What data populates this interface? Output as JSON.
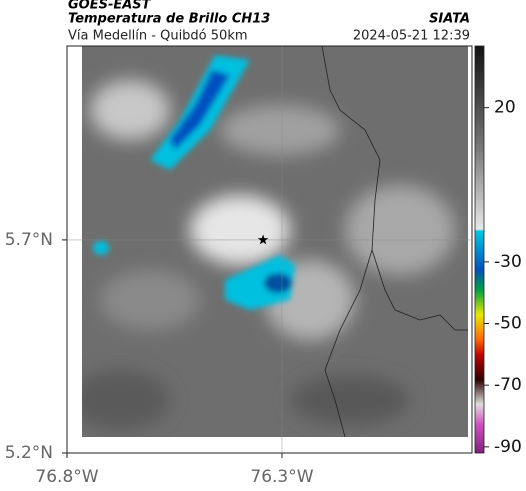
{
  "header": {
    "source": "GOES-EAST",
    "title": "Temperatura de Brillo CH13",
    "brand": "SIATA",
    "route": "Vía Medellín - Quibdó 50km",
    "timestamp": "2024-05-21 12:39"
  },
  "map": {
    "xlim": [
      -76.8,
      -75.858
    ],
    "ylim": [
      5.2,
      6.155
    ],
    "xticks": [
      {
        "value": -76.8,
        "label": "76.8°W"
      },
      {
        "value": -76.3,
        "label": "76.3°W"
      }
    ],
    "yticks": [
      {
        "value": 5.2,
        "label": "5.2°N"
      },
      {
        "value": 5.7,
        "label": "5.7°N"
      }
    ],
    "grid": true,
    "marker": {
      "lon": -76.344,
      "lat": 5.7
    },
    "colorbar": {
      "clim": [
        -92,
        40
      ],
      "ticks": [
        20,
        -30,
        -50,
        -70,
        -90
      ]
    }
  }
}
